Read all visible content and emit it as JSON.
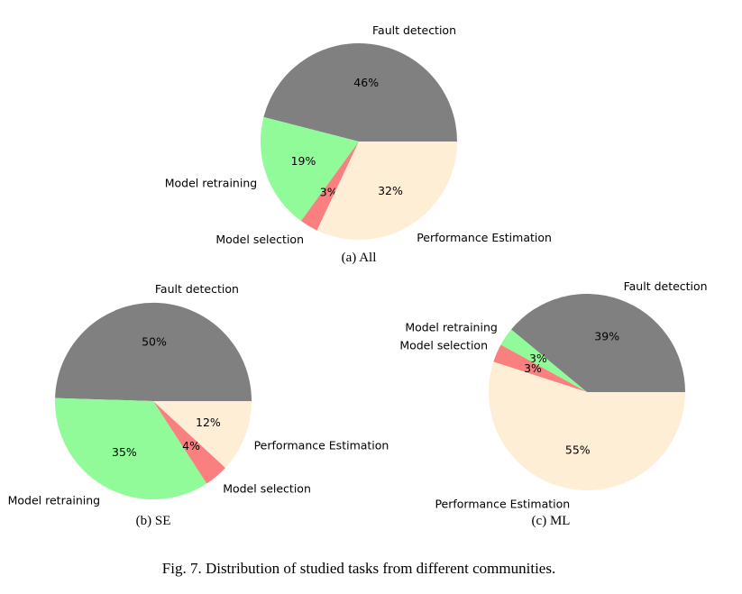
{
  "figure": {
    "caption": "Fig. 7.  Distribution of studied tasks from different communities."
  },
  "colors": {
    "Fault detection": "#808080",
    "Model retraining": "#90fb98",
    "Model selection": "#fa8080",
    "Performance Estimation": "#feeed6"
  },
  "chart_data": [
    {
      "type": "pie",
      "subcaption": "(a)  All",
      "slices": [
        {
          "label": "Fault detection",
          "value": 46,
          "pct_text": "46%"
        },
        {
          "label": "Model retraining",
          "value": 19,
          "pct_text": "19%"
        },
        {
          "label": "Model selection",
          "value": 3,
          "pct_text": "3%"
        },
        {
          "label": "Performance Estimation",
          "value": 32,
          "pct_text": "32%"
        }
      ]
    },
    {
      "type": "pie",
      "subcaption": "(b)  SE",
      "slices": [
        {
          "label": "Fault detection",
          "value": 50,
          "pct_text": "50%"
        },
        {
          "label": "Model retraining",
          "value": 35,
          "pct_text": "35%"
        },
        {
          "label": "Model selection",
          "value": 4,
          "pct_text": "4%"
        },
        {
          "label": "Performance Estimation",
          "value": 12,
          "pct_text": "12%"
        }
      ]
    },
    {
      "type": "pie",
      "subcaption": "(c)  ML",
      "slices": [
        {
          "label": "Fault detection",
          "value": 39,
          "pct_text": "39%"
        },
        {
          "label": "Model retraining",
          "value": 3,
          "pct_text": "3%"
        },
        {
          "label": "Model selection",
          "value": 3,
          "pct_text": "3%"
        },
        {
          "label": "Performance Estimation",
          "value": 55,
          "pct_text": "55%"
        }
      ]
    }
  ]
}
